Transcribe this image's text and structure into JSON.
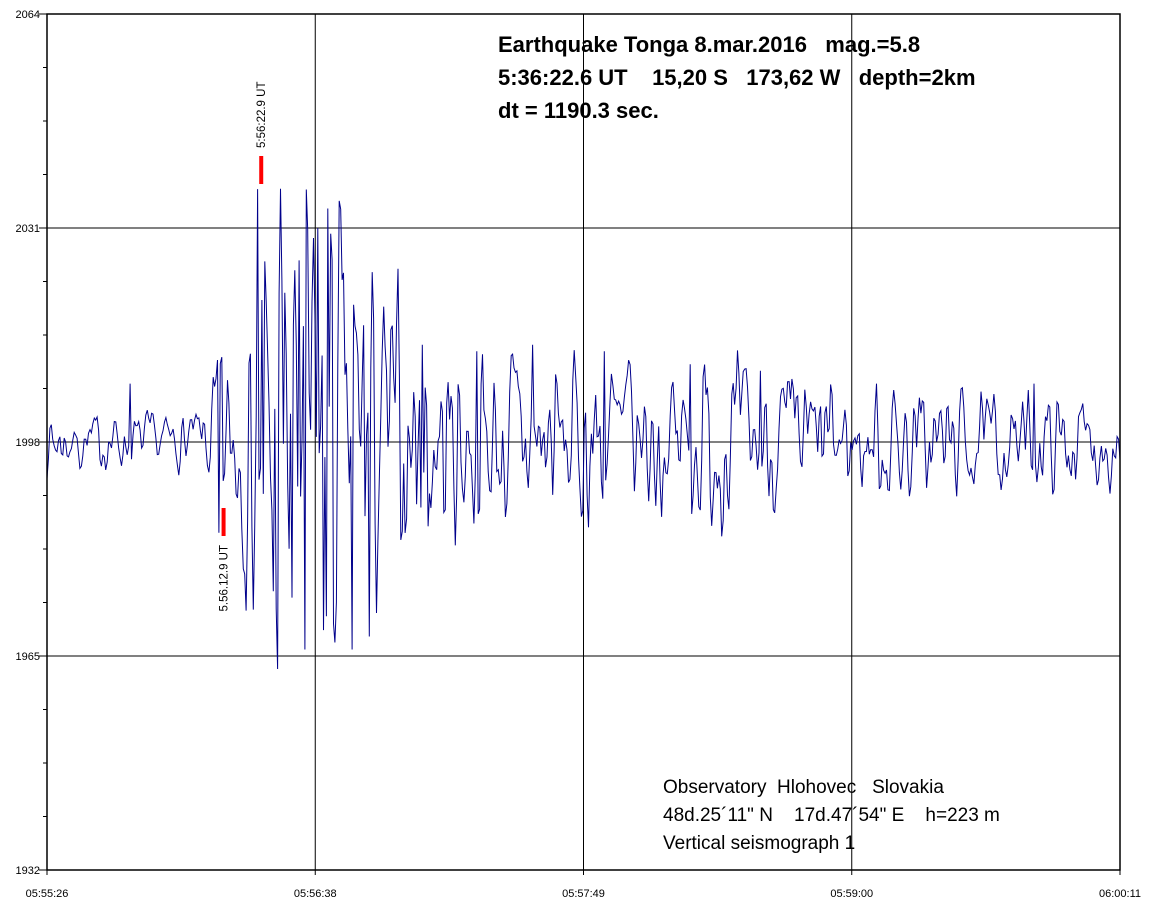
{
  "header": {
    "lines": [
      "Earthquake Tonga 8.mar.2016   mag.=5.8",
      "5:36:22.6 UT    15,20 S   173,62 W   depth=2km",
      "dt = 1190.3 sec."
    ]
  },
  "station_info": {
    "lines": [
      "Observatory  Hlohovec   Slovakia",
      "48d.25´11\" N    17d.47´54\" E    h=223 m",
      "Vertical seismograph 1"
    ]
  },
  "chart_data": {
    "type": "line",
    "kind": "seismogram",
    "title": "Earthquake Tonga 8.mar.2016 mag.=5.8",
    "xlabel": "",
    "ylabel": "",
    "x_ticks": [
      "05:55:26",
      "05:56:38",
      "05:57:49",
      "05:59:00",
      "06:00:11"
    ],
    "y_ticks": [
      2064,
      2031,
      1998,
      1965,
      1932
    ],
    "ylim": [
      1932,
      2064
    ],
    "duration_sec": 285,
    "baseline": 1998,
    "grid": true,
    "trace_color": "#00008b",
    "marker_color": "#ff0000",
    "samples": 750,
    "seed": 7,
    "envelope": [
      [
        0,
        3.5
      ],
      [
        0.13,
        3.5
      ],
      [
        0.15,
        6
      ],
      [
        0.162,
        14
      ],
      [
        0.172,
        9
      ],
      [
        0.183,
        14
      ],
      [
        0.19,
        18
      ],
      [
        0.1965,
        40
      ],
      [
        0.215,
        37
      ],
      [
        0.24,
        33
      ],
      [
        0.265,
        34
      ],
      [
        0.29,
        28
      ],
      [
        0.31,
        22
      ],
      [
        0.34,
        16
      ],
      [
        0.37,
        14
      ],
      [
        0.42,
        12
      ],
      [
        0.47,
        12
      ],
      [
        0.52,
        12
      ],
      [
        0.57,
        10
      ],
      [
        0.62,
        11
      ],
      [
        0.67,
        9
      ],
      [
        0.72,
        8
      ],
      [
        0.77,
        8
      ],
      [
        0.82,
        7
      ],
      [
        0.87,
        6
      ],
      [
        0.92,
        6
      ],
      [
        1,
        5.5
      ]
    ],
    "landmarks": [
      [
        0.077,
        2007
      ],
      [
        0.16,
        1984
      ],
      [
        0.1646,
        1992
      ],
      [
        0.186,
        1972
      ],
      [
        0.1965,
        2037
      ],
      [
        0.201,
        1990
      ],
      [
        0.206,
        2012
      ],
      [
        0.2115,
        1975
      ],
      [
        0.215,
        1963
      ],
      [
        0.2215,
        2021
      ],
      [
        0.228,
        1974
      ],
      [
        0.2345,
        2026
      ],
      [
        0.2405,
        1966
      ],
      [
        0.252,
        2031
      ],
      [
        0.2575,
        1969
      ],
      [
        0.262,
        2034
      ],
      [
        0.2675,
        1970
      ],
      [
        0.2755,
        2023
      ],
      [
        0.285,
        1966
      ],
      [
        0.2955,
        2016
      ],
      [
        0.301,
        1968
      ],
      [
        0.312,
        2012
      ],
      [
        0.35,
        2013
      ],
      [
        0.355,
        1985
      ],
      [
        0.4,
        2012
      ],
      [
        0.452,
        2013
      ],
      [
        0.52,
        2012
      ],
      [
        0.6,
        2010
      ],
      [
        0.665,
        2009
      ],
      [
        0.92,
        2007
      ]
    ],
    "phase_markers": [
      {
        "label": "5:56:22.9 UT",
        "t": 0.19965,
        "position": "above"
      },
      {
        "label": "5.56.12.9 UT",
        "t": 0.16456,
        "position": "below"
      }
    ]
  }
}
